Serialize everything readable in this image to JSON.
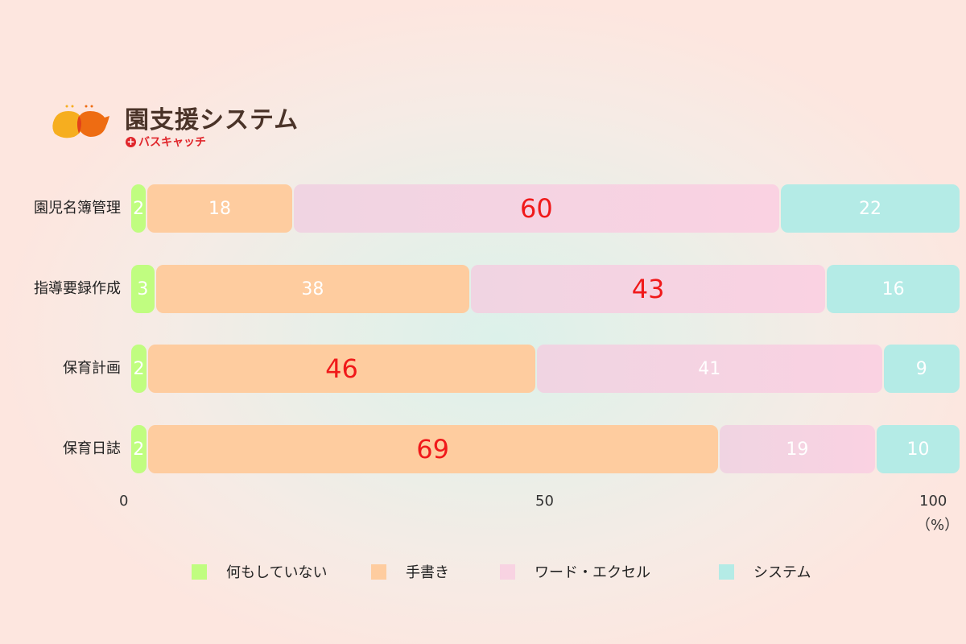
{
  "brand": {
    "title": "園支援システム",
    "subtitle": "バスキャッチ",
    "subtitle_icon": "plus-circle-icon",
    "colors": {
      "title": "#4a3328",
      "subtitle": "#e0262b",
      "icon_left": "#f6ae1f",
      "icon_right": "#ee6c12"
    }
  },
  "colors": {
    "none": "#c0fd80",
    "hand": "#fecc9f",
    "word": "#f8d3e2",
    "system": "#b4ebe6",
    "highlight_text": "#f0191a"
  },
  "rows": [
    {
      "label": "園児名簿管理",
      "values": [
        2,
        18,
        60,
        22
      ],
      "highlight": 2
    },
    {
      "label": "指導要録作成",
      "values": [
        3,
        38,
        43,
        16
      ],
      "highlight": 2
    },
    {
      "label": "保育計画",
      "values": [
        2,
        46,
        41,
        9
      ],
      "highlight": 1
    },
    {
      "label": "保育日誌",
      "values": [
        2,
        69,
        19,
        10
      ],
      "highlight": 1
    }
  ],
  "axis": {
    "ticks": [
      "0",
      "50",
      "100"
    ],
    "unit": "（%）"
  },
  "legend": [
    {
      "label": "何もしていない",
      "key": "none"
    },
    {
      "label": "手書き",
      "key": "hand"
    },
    {
      "label": "ワード・エクセル",
      "key": "word"
    },
    {
      "label": "システム",
      "key": "system"
    }
  ],
  "chart_data": {
    "type": "bar",
    "orientation": "horizontal",
    "stacked": true,
    "title": "",
    "categories": [
      "園児名簿管理",
      "指導要録作成",
      "保育計画",
      "保育日誌"
    ],
    "series": [
      {
        "name": "何もしていない",
        "values": [
          2,
          3,
          2,
          2
        ],
        "color": "#c0fd80"
      },
      {
        "name": "手書き",
        "values": [
          18,
          38,
          46,
          69
        ],
        "color": "#fecc9f"
      },
      {
        "name": "ワード・エクセル",
        "values": [
          60,
          43,
          41,
          19
        ],
        "color": "#f8d3e2"
      },
      {
        "name": "システム",
        "values": [
          22,
          16,
          9,
          10
        ],
        "color": "#b4ebe6"
      }
    ],
    "xlabel": "（%）",
    "ylabel": "",
    "xlim": [
      0,
      100
    ],
    "xticks": [
      0,
      50,
      100
    ],
    "data_labels": true,
    "highlighted_labels": [
      "園児名簿管理: ワード・エクセル 60",
      "指導要録作成: ワード・エクセル 43",
      "保育計画: 手書き 46",
      "保育日誌: 手書き 69"
    ],
    "legend_position": "bottom",
    "grid": false
  }
}
